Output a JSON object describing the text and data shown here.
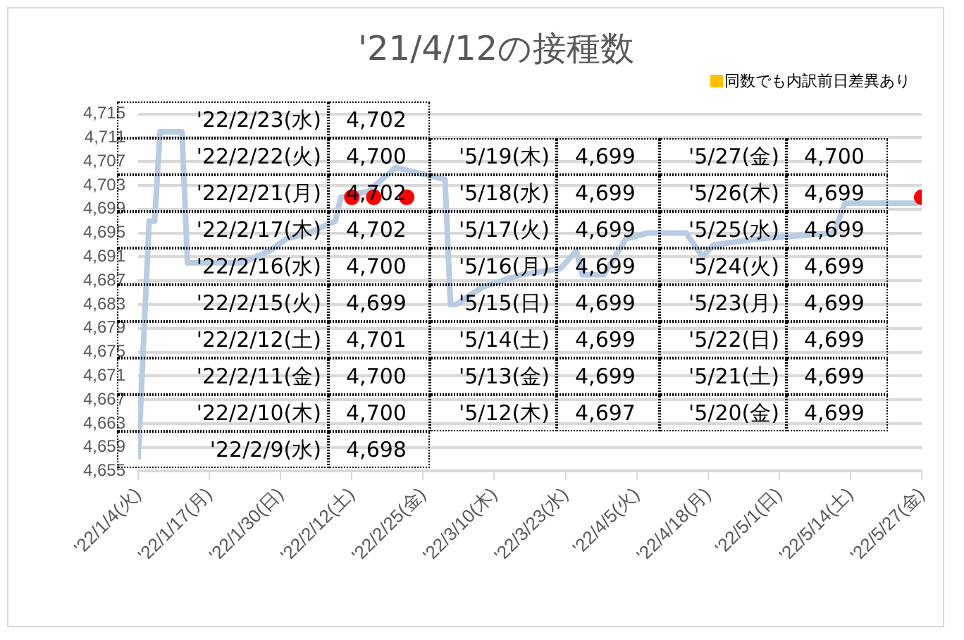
{
  "chart_data": {
    "type": "line",
    "title": "'21/4/12の接種数",
    "x": [
      "2022-01-04",
      "2022-01-06",
      "2022-01-07",
      "2022-01-08",
      "2022-01-12",
      "2022-01-13",
      "2022-01-18",
      "2022-01-23",
      "2022-01-28",
      "2022-01-31",
      "2022-02-04",
      "2022-02-09",
      "2022-02-10",
      "2022-02-15",
      "2022-02-20",
      "2022-03-01",
      "2022-03-02",
      "2022-03-03",
      "2022-03-08",
      "2022-03-15",
      "2022-03-22",
      "2022-03-25",
      "2022-03-26",
      "2022-03-30",
      "2022-04-03",
      "2022-04-07",
      "2022-04-14",
      "2022-04-17",
      "2022-04-19",
      "2022-04-27",
      "2022-05-11",
      "2022-05-13",
      "2022-05-26",
      "2022-05-27"
    ],
    "series": [
      {
        "color": "#b8cce4",
        "values": [
          4657,
          4697,
          4697,
          4712,
          4712,
          4690,
          4690,
          4690,
          4692,
          4694,
          4695,
          4697,
          4701,
          4702,
          4706,
          4704,
          4683,
          4683,
          4686,
          4688,
          4689,
          4692,
          4688,
          4688,
          4694,
          4695,
          4695,
          4691,
          4693,
          4694,
          4695,
          4700,
          4700,
          4701
        ]
      },
      {
        "type": "scatter",
        "marker": "circle",
        "color": "#ff0000",
        "x": [
          "2022-02-12",
          "2022-02-16",
          "2022-02-22",
          "2022-05-27"
        ],
        "values": [
          4701,
          4701,
          4701,
          4701
        ]
      }
    ],
    "xlim": [
      "2022-01-04",
      "2022-05-27"
    ],
    "xticks": [
      {
        "value": "2022-01-04",
        "label": "'22/1/4(火)"
      },
      {
        "value": "2022-01-17",
        "label": "'22/1/17(月)"
      },
      {
        "value": "2022-01-30",
        "label": "'22/1/30(日)"
      },
      {
        "value": "2022-02-12",
        "label": "'22/2/12(土)"
      },
      {
        "value": "2022-02-25",
        "label": "'22/2/25(金)"
      },
      {
        "value": "2022-03-10",
        "label": "'22/3/10(木)"
      },
      {
        "value": "2022-03-23",
        "label": "'22/3/23(水)"
      },
      {
        "value": "2022-04-05",
        "label": "'22/4/5(火)"
      },
      {
        "value": "2022-04-18",
        "label": "'22/4/18(月)"
      },
      {
        "value": "2022-05-01",
        "label": "'22/5/1(日)"
      },
      {
        "value": "2022-05-14",
        "label": "'22/5/14(土)"
      },
      {
        "value": "2022-05-27",
        "label": "'22/5/27(金)"
      }
    ],
    "ylim": [
      4655,
      4715
    ],
    "yticks": [
      {
        "value": 4655,
        "label": "4,655"
      },
      {
        "value": 4659,
        "label": "4,659"
      },
      {
        "value": 4663,
        "label": "4,663"
      },
      {
        "value": 4667,
        "label": "4,667"
      },
      {
        "value": 4671,
        "label": "4,671"
      },
      {
        "value": 4675,
        "label": "4,675"
      },
      {
        "value": 4679,
        "label": "4,679"
      },
      {
        "value": 4683,
        "label": "4,683"
      },
      {
        "value": 4687,
        "label": "4,687"
      },
      {
        "value": 4691,
        "label": "4,691"
      },
      {
        "value": 4695,
        "label": "4,695"
      },
      {
        "value": 4699,
        "label": "4,699"
      },
      {
        "value": 4703,
        "label": "4,703"
      },
      {
        "value": 4707,
        "label": "4,707"
      },
      {
        "value": 4711,
        "label": "4,711"
      },
      {
        "value": 4715,
        "label": "4,715"
      }
    ],
    "grid": "y",
    "legend": false,
    "marker": "none",
    "annotations": [
      "同数でも内訳前日差異あり",
      "'22/2/23(水)",
      "4,702",
      "'22/2/22(火)",
      "4,700",
      "'22/2/21(月)",
      "4,702",
      "'22/2/17(木)",
      "4,702",
      "'22/2/16(水)",
      "4,700",
      "'22/2/15(火)",
      "4,699",
      "'22/2/12(土)",
      "4,701",
      "'22/2/11(金)",
      "4,700",
      "'22/2/10(木)",
      "4,700",
      "'22/2/9(水)",
      "4,698",
      "'5/19(木)",
      "4,699",
      "'5/18(水)",
      "4,699",
      "'5/17(火)",
      "4,699",
      "'5/16(月)",
      "4,699",
      "'5/15(日)",
      "4,699",
      "'5/14(土)",
      "4,699",
      "'5/13(金)",
      "4,699",
      "'5/12(木)",
      "4,697",
      "'5/27(金)",
      "4,700",
      "'5/26(木)",
      "4,699",
      "'5/25(水)",
      "4,699",
      "'5/24(火)",
      "4,699",
      "'5/23(月)",
      "4,699",
      "'5/22(日)",
      "4,699",
      "'5/21(土)",
      "4,699",
      "'5/20(金)",
      "4,699"
    ]
  }
}
